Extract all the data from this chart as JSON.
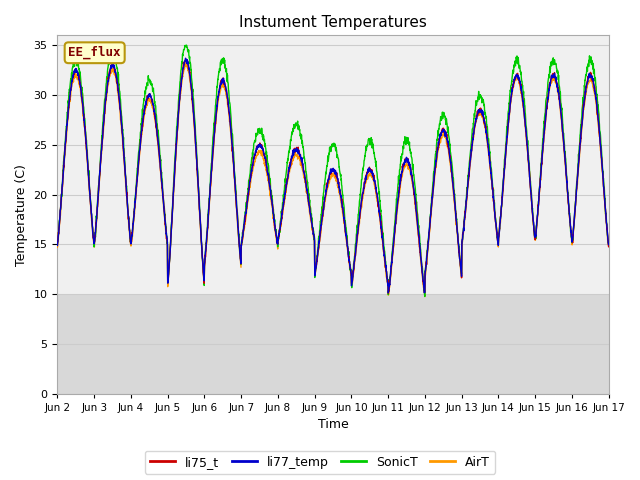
{
  "title": "Instument Temperatures",
  "xlabel": "Time",
  "ylabel": "Temperature (C)",
  "ylim": [
    0,
    36
  ],
  "yticks": [
    0,
    5,
    10,
    15,
    20,
    25,
    30,
    35
  ],
  "bg_color": "#e8e8e8",
  "band_boundary": 10,
  "ee_flux_label": "EE_flux",
  "ee_flux_color": "#800000",
  "ee_flux_bg": "#ffffcc",
  "ee_flux_border": "#b8960c",
  "series": [
    "li75_t",
    "li77_temp",
    "SonicT",
    "AirT"
  ],
  "colors": [
    "#cc0000",
    "#0000cc",
    "#00cc00",
    "#ff9900"
  ],
  "linewidth": 1.0,
  "x_labels": [
    "Jun 2",
    "Jun 3",
    "Jun 4",
    "Jun 5",
    "Jun 6",
    "Jun 7",
    "Jun 8",
    "Jun 9",
    "Jun 10",
    "Jun 11",
    "Jun 12",
    "Jun 13",
    "Jun 14",
    "Jun 15",
    "Jun 16",
    "Jun 17"
  ],
  "n_days": 15,
  "pts_per_day": 144,
  "day_peaks": [
    32.5,
    33.0,
    30.0,
    33.5,
    31.5,
    25.0,
    24.5,
    22.5,
    22.5,
    23.5,
    26.5,
    28.5,
    32.0,
    32.0,
    32.0
  ],
  "day_mins": [
    15.0,
    15.0,
    15.0,
    11.0,
    13.0,
    15.0,
    15.5,
    12.0,
    11.0,
    10.0,
    12.0,
    15.0,
    15.5,
    15.5,
    15.0
  ],
  "sonic_extra": [
    1.0,
    1.5,
    1.5,
    1.5,
    2.0,
    1.5,
    2.5,
    2.5,
    3.0,
    2.0,
    1.5,
    1.5,
    1.5,
    1.5,
    1.5
  ],
  "air_offset": [
    -0.5,
    -0.5,
    -0.5,
    -0.5,
    -0.5,
    -0.7,
    -0.5,
    -0.5,
    -0.5,
    -0.5,
    -0.5,
    -0.3,
    -0.3,
    -0.3,
    -0.5
  ]
}
